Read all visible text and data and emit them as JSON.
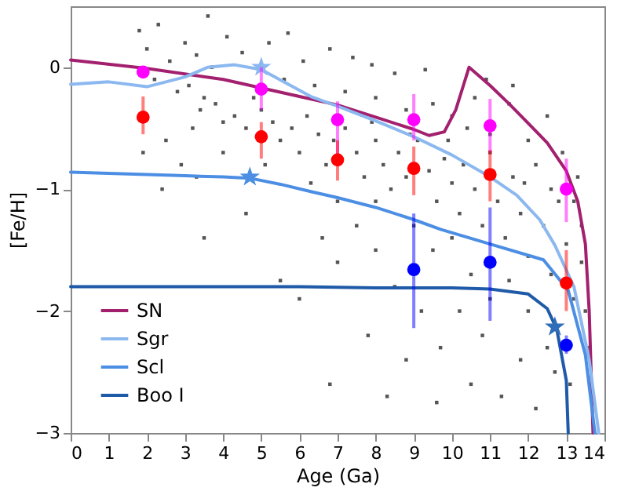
{
  "chart_data": {
    "type": "scatter",
    "xlabel": "Age (Ga)",
    "ylabel": "[Fe/H]",
    "xlim": [
      0,
      14
    ],
    "ylim": [
      -3,
      0.5
    ],
    "xticks": [
      0,
      1,
      2,
      3,
      4,
      5,
      6,
      7,
      8,
      9,
      10,
      11,
      12,
      13,
      14
    ],
    "yticks": [
      -3,
      -2,
      -1,
      0
    ],
    "legend": "bottom left",
    "series": [
      {
        "type": "scatter",
        "color": "#555555",
        "marker": "square",
        "x": [
          1.8,
          2.0,
          2.3,
          2.6,
          3.0,
          3.3,
          3.6,
          4.1,
          4.5,
          5.2,
          5.7,
          6.1,
          6.8,
          7.4,
          7.9,
          8.5,
          9.3,
          2.2,
          2.8,
          3.1,
          3.5,
          3.4,
          3.8,
          4.0,
          4.3,
          4.6,
          2.5,
          2.9,
          3.2,
          5.0,
          5.3,
          5.5,
          5.8,
          6.0,
          6.2,
          6.5,
          6.7,
          6.9,
          7.2,
          7.5,
          7.7,
          8.0,
          8.2,
          8.4,
          8.6,
          8.8,
          9.1,
          9.4,
          9.6,
          9.8,
          10.0,
          10.2,
          10.4,
          10.6,
          10.8,
          11.0,
          11.2,
          11.4,
          11.6,
          11.8,
          12.0,
          12.2,
          12.4,
          12.6,
          12.8,
          13.0,
          13.2,
          13.4,
          13.5,
          13.3,
          12.5,
          11.5,
          10.6,
          9.5,
          8.8,
          8.0,
          7.2,
          6.4,
          5.6,
          9.0,
          9.5,
          10.0,
          10.5,
          11.0,
          11.5,
          12.0,
          12.5,
          11.8,
          10.8,
          10.2,
          9.7,
          9.2,
          8.8,
          8.5,
          8.0,
          7.5,
          7.0,
          6.6,
          6.8,
          7.8,
          8.3,
          9.6,
          10.5,
          11.3,
          12.2,
          12.7,
          5.5,
          6.0,
          4.6,
          3.5,
          2.4,
          1.9,
          3.3,
          4.0,
          7.0,
          8.0,
          10.0,
          11.0,
          12.0,
          12.9,
          13.4,
          13.6,
          13.1,
          11.6,
          10.9,
          3.7,
          4.8,
          7.9,
          9.9,
          12.6,
          11.9,
          10.3,
          8.9,
          6.3,
          5.1,
          13.2
        ],
        "values": [
          0.3,
          0.15,
          0.35,
          0.05,
          0.2,
          0.1,
          0.42,
          0.25,
          0.12,
          0.2,
          0.28,
          0.05,
          0.15,
          0.08,
          0.02,
          -0.05,
          -0.02,
          -0.1,
          -0.2,
          -0.15,
          -0.25,
          -0.35,
          -0.3,
          -0.45,
          -0.4,
          -0.5,
          -0.6,
          -0.8,
          -0.5,
          -0.35,
          -0.45,
          -0.6,
          -0.5,
          -0.7,
          -0.4,
          -0.55,
          -0.8,
          -0.6,
          -0.5,
          -0.7,
          -0.9,
          -0.6,
          -0.8,
          -1.0,
          -0.7,
          -0.9,
          -0.6,
          -0.85,
          -1.1,
          -0.75,
          -0.95,
          -1.2,
          -0.5,
          -1.0,
          -1.3,
          -0.7,
          -1.1,
          -1.4,
          -0.9,
          -1.2,
          -1.55,
          -0.8,
          -1.3,
          -1.7,
          -1.1,
          -1.45,
          -1.9,
          -1.3,
          -2.0,
          -0.9,
          -0.4,
          -0.3,
          -0.25,
          -0.3,
          -0.35,
          -0.25,
          -0.2,
          -0.15,
          -0.1,
          -1.3,
          -1.5,
          -1.4,
          -1.7,
          -1.9,
          -1.75,
          -2.0,
          -2.3,
          -2.4,
          -2.2,
          -2.0,
          -2.3,
          -2.0,
          -2.4,
          -1.8,
          -1.5,
          -1.3,
          -1.6,
          -1.4,
          -2.6,
          -2.2,
          -2.7,
          -2.75,
          -2.6,
          -2.7,
          -2.8,
          -2.5,
          -1.75,
          -1.9,
          -1.2,
          -1.4,
          -1.0,
          -0.7,
          -0.9,
          -0.7,
          -1.1,
          -1.1,
          -0.4,
          -0.55,
          -0.6,
          -0.7,
          -1.6,
          -2.3,
          -2.6,
          -0.15,
          -0.1,
          0.0,
          -0.25,
          -0.45,
          -0.6,
          -1.0,
          -0.95,
          -0.8,
          -0.55,
          -0.95,
          -0.8,
          -1.1
        ]
      },
      {
        "type": "line",
        "name": "SN",
        "color": "#a3206f",
        "x": [
          0,
          2,
          4,
          6,
          7,
          8,
          9,
          9.4,
          9.8,
          10.1,
          10.3,
          10.45,
          11,
          11.5,
          12,
          12.5,
          13,
          13.3,
          13.5,
          13.6,
          13.7
        ],
        "values": [
          0.06,
          -0.01,
          -0.1,
          -0.24,
          -0.31,
          -0.41,
          -0.51,
          -0.56,
          -0.53,
          -0.35,
          -0.15,
          0.0,
          -0.15,
          -0.3,
          -0.46,
          -0.62,
          -0.85,
          -1.1,
          -1.45,
          -2.0,
          -3.0
        ]
      },
      {
        "type": "line",
        "name": "Sgr",
        "color": "#8cb8f0",
        "x": [
          0,
          1,
          2,
          3,
          3.6,
          4.3,
          5,
          6.3,
          7,
          8,
          9,
          10,
          11,
          11.7,
          12.3,
          12.7,
          13.2,
          13.6,
          13.85
        ],
        "values": [
          -0.14,
          -0.12,
          -0.16,
          -0.08,
          0.0,
          0.02,
          -0.02,
          -0.24,
          -0.32,
          -0.44,
          -0.57,
          -0.72,
          -0.9,
          -1.05,
          -1.25,
          -1.46,
          -1.8,
          -2.4,
          -3.0
        ]
      },
      {
        "type": "line",
        "name": "Scl",
        "color": "#4b8ee3",
        "x": [
          0,
          1,
          2,
          3,
          4,
          4.7,
          5.5,
          6.3,
          7,
          8,
          9,
          9.7,
          11,
          12.4,
          13.05,
          13.5,
          13.75
        ],
        "values": [
          -0.86,
          -0.87,
          -0.88,
          -0.89,
          -0.9,
          -0.91,
          -0.96,
          -1.02,
          -1.07,
          -1.15,
          -1.25,
          -1.33,
          -1.45,
          -1.58,
          -1.83,
          -2.36,
          -3.0
        ]
      },
      {
        "type": "line",
        "name": "Boo I",
        "color": "#1f5aa8",
        "x": [
          0,
          2,
          4,
          6,
          8,
          10,
          11,
          12,
          12.5,
          12.75,
          13,
          13.05
        ],
        "values": [
          -1.8,
          -1.8,
          -1.8,
          -1.8,
          -1.81,
          -1.81,
          -1.82,
          -1.86,
          -1.98,
          -2.15,
          -2.57,
          -3.0
        ]
      },
      {
        "type": "scatter",
        "color": "#8cb8f0",
        "marker": "star",
        "x": [
          5
        ],
        "values": [
          0.0
        ]
      },
      {
        "type": "scatter",
        "color": "#4b8ee3",
        "marker": "star",
        "x": [
          4.7
        ],
        "values": [
          -0.9
        ]
      },
      {
        "type": "scatter",
        "color": "#2f6db8",
        "marker": "star",
        "x": [
          12.7
        ],
        "values": [
          -2.13
        ]
      },
      {
        "type": "scatter",
        "color": "#ff00ff",
        "marker": "circle",
        "x": [
          1.9,
          5,
          7,
          9,
          11,
          13
        ],
        "values": [
          -0.04,
          -0.18,
          -0.43,
          -0.43,
          -0.48,
          -1.0
        ],
        "errors": [
          null,
          [
            -0.35,
            0.0
          ],
          [
            -0.71,
            -0.28
          ],
          [
            -0.6,
            -0.22
          ],
          [
            -0.7,
            -0.26
          ],
          [
            -1.27,
            -0.75
          ]
        ]
      },
      {
        "type": "scatter",
        "color": "#ff0000",
        "marker": "circle",
        "x": [
          1.9,
          5,
          7,
          9,
          11,
          13
        ],
        "values": [
          -0.41,
          -0.57,
          -0.76,
          -0.83,
          -0.88,
          -1.77
        ],
        "errors": [
          [
            -0.55,
            -0.24
          ],
          [
            -0.75,
            -0.45
          ],
          [
            -0.93,
            -0.6
          ],
          [
            -1.05,
            -0.65
          ],
          [
            -1.1,
            -0.68
          ],
          [
            -2.0,
            -1.5
          ]
        ]
      },
      {
        "type": "scatter",
        "color": "#0000ff",
        "marker": "circle",
        "x": [
          9,
          11,
          13
        ],
        "values": [
          -1.66,
          -1.6,
          -2.28
        ],
        "errors": [
          [
            -2.14,
            -1.2
          ],
          [
            -2.08,
            -1.15
          ],
          [
            -2.35,
            -2.2
          ]
        ]
      }
    ]
  }
}
